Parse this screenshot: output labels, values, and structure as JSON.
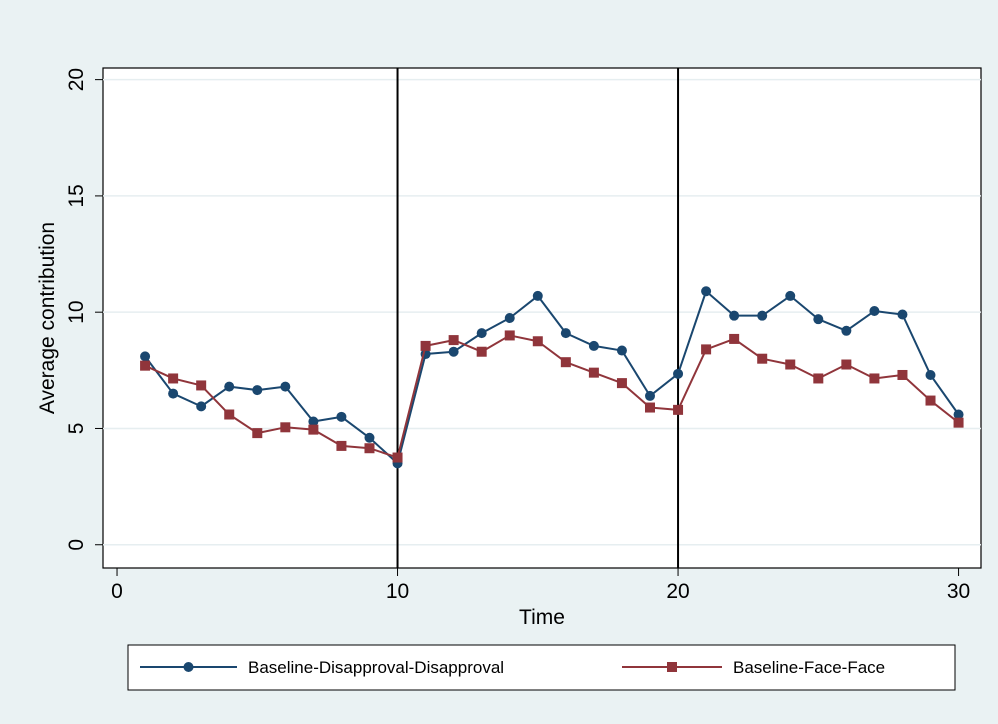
{
  "chart_data": {
    "type": "line",
    "title": "",
    "xlabel": "Time",
    "ylabel": "Average contribution",
    "xlim": [
      -0.5,
      30.8
    ],
    "ylim": [
      -1,
      20.5
    ],
    "xticks": [
      0,
      10,
      20,
      30
    ],
    "yticks": [
      0,
      5,
      10,
      15,
      20
    ],
    "vlines": [
      10,
      20
    ],
    "grid": true,
    "legend_position": "bottom",
    "series": [
      {
        "name": "Baseline-Disapproval-Disapproval",
        "color": "#1a476f",
        "marker": "circle",
        "x": [
          1,
          2,
          3,
          4,
          5,
          6,
          7,
          8,
          9,
          10,
          11,
          12,
          13,
          14,
          15,
          16,
          17,
          18,
          19,
          20,
          21,
          22,
          23,
          24,
          25,
          26,
          27,
          28,
          29,
          30
        ],
        "values": [
          8.1,
          6.5,
          5.95,
          6.8,
          6.65,
          6.8,
          5.3,
          5.5,
          4.6,
          3.5,
          8.2,
          8.3,
          9.1,
          9.75,
          10.7,
          9.1,
          8.55,
          8.35,
          6.4,
          7.35,
          10.9,
          9.85,
          9.85,
          10.7,
          9.7,
          9.2,
          10.05,
          9.9,
          7.3,
          5.6
        ]
      },
      {
        "name": "Baseline-Face-Face",
        "color": "#90353b",
        "marker": "square",
        "x": [
          1,
          2,
          3,
          4,
          5,
          6,
          7,
          8,
          9,
          10,
          11,
          12,
          13,
          14,
          15,
          16,
          17,
          18,
          19,
          20,
          21,
          22,
          23,
          24,
          25,
          26,
          27,
          28,
          29,
          30
        ],
        "values": [
          7.7,
          7.15,
          6.85,
          5.6,
          4.8,
          5.05,
          4.95,
          4.25,
          4.15,
          3.75,
          8.55,
          8.8,
          8.3,
          9.0,
          8.75,
          7.85,
          7.4,
          6.95,
          5.9,
          5.8,
          8.4,
          8.85,
          8.0,
          7.75,
          7.15,
          7.75,
          7.15,
          7.3,
          6.2,
          5.25
        ]
      }
    ]
  }
}
